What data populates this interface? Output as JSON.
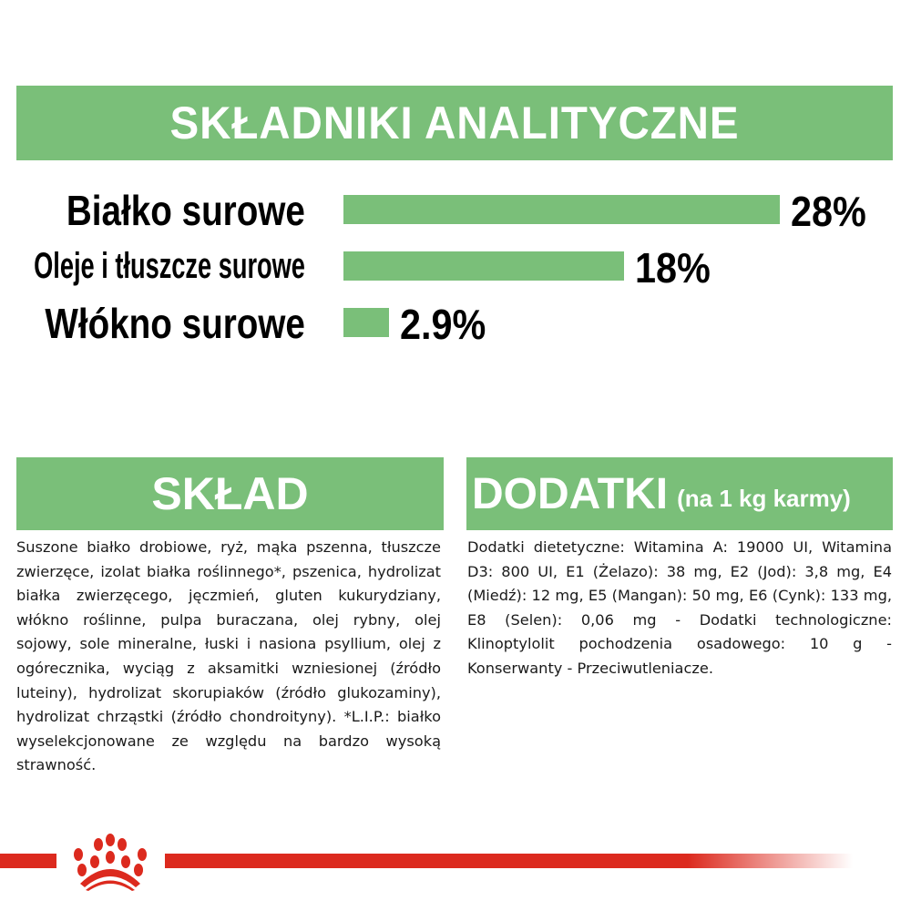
{
  "analytics": {
    "title": "SKŁADNIKI ANALITYCZNE",
    "items": [
      {
        "label": "Białko surowe",
        "value": 28,
        "value_label": "28%"
      },
      {
        "label": "Oleje i tłuszcze surowe",
        "value": 18,
        "value_label": "18%"
      },
      {
        "label": "Włókno surowe",
        "value": 2.9,
        "value_label": "2.9%"
      }
    ]
  },
  "composition": {
    "title": "SKŁAD",
    "text": "Suszone białko drobiowe, ryż, mąka pszenna, tłuszcze zwierzęce, izolat białka roślinnego*, pszenica, hydrolizat białka zwierzęcego, jęczmień, gluten kukurydziany, włókno roślinne, pulpa buraczana, olej rybny, olej sojowy, sole mineralne, łuski i nasiona psyllium, olej z ogórecznika, wyciąg z aksamitki wzniesionej (źródło luteiny), hydrolizat skorupiaków (źródło glukozaminy), hydrolizat chrząstki (źródło chondroityny). *L.I.P.: białko wyselekcjonowane ze względu na bardzo wysoką strawność."
  },
  "additives": {
    "title": "DODATKI",
    "subtitle": "(na 1 kg karmy)",
    "text": "Dodatki dietetyczne: Witamina A: 19000 UI, Witamina D3: 800 UI, E1 (Żelazo): 38 mg, E2 (Jod): 3,8 mg, E4 (Miedź): 12 mg, E5 (Mangan): 50 mg, E6 (Cynk): 133 mg, E8 (Selen): 0,06 mg - Dodatki technologiczne: Klinoptylolit pochodzenia osadowego: 10 g - Konserwanty - Przeciwutleniacze."
  },
  "colors": {
    "accent_green": "#7abf79",
    "brand_red": "#dc2a1e"
  },
  "footer": {
    "logo_icon": "royal-canin-crown-icon"
  }
}
